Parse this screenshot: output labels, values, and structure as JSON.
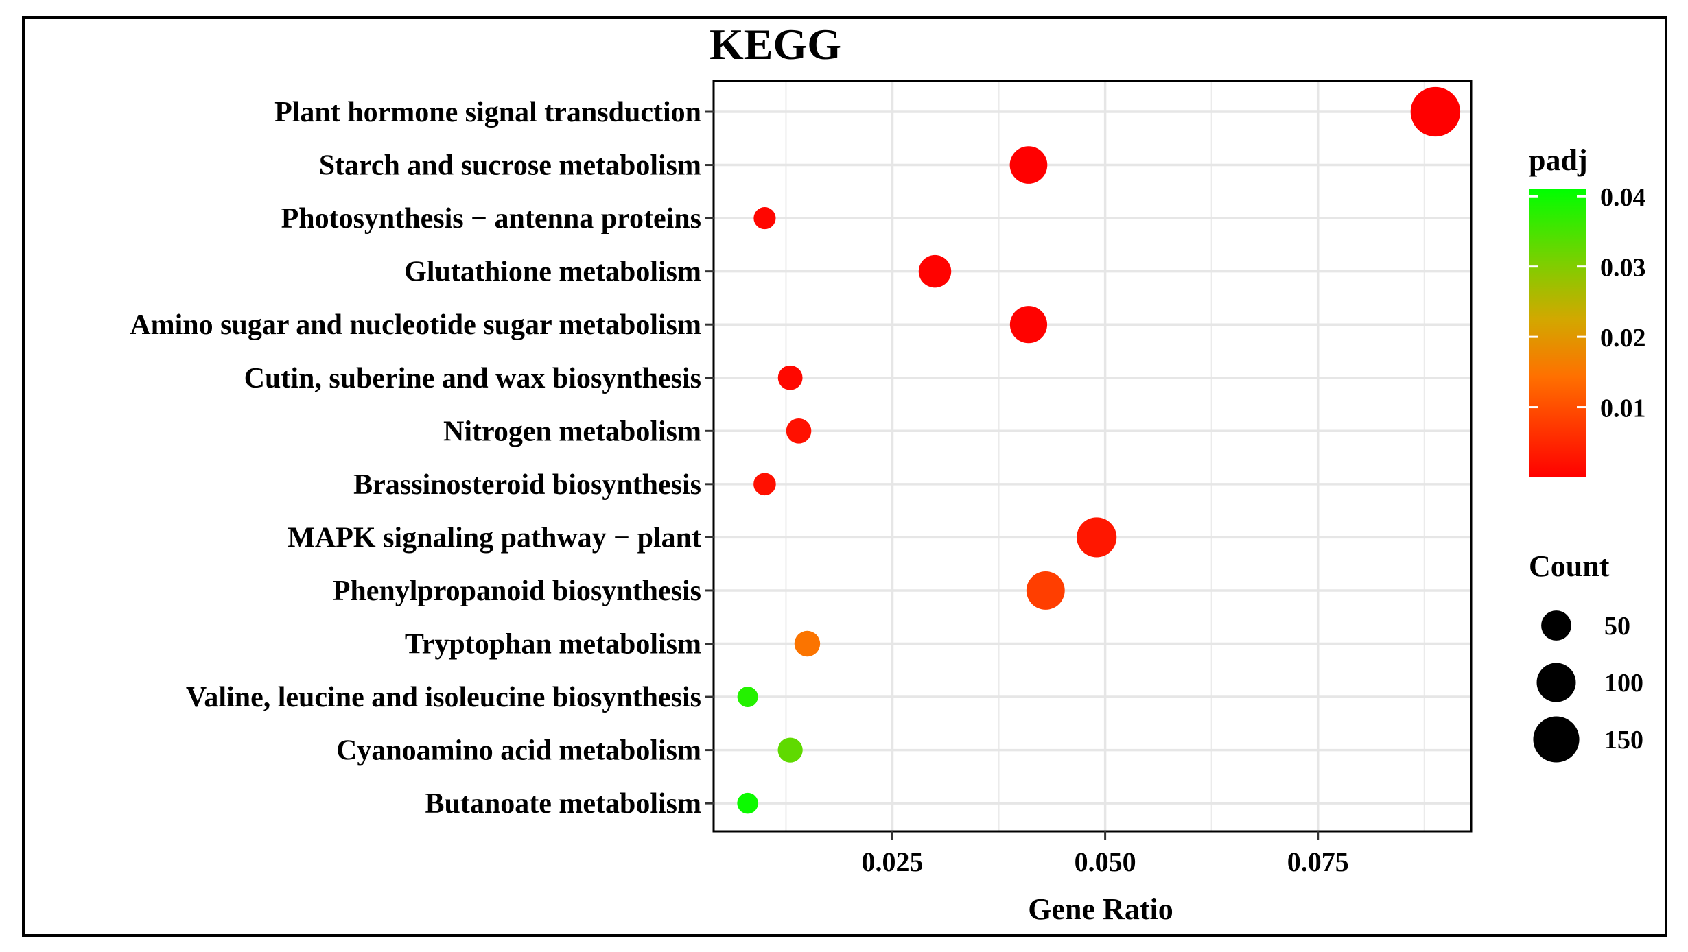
{
  "chart_data": {
    "type": "scatter",
    "title": "KEGG",
    "xlabel": "Gene Ratio",
    "ylabel": "",
    "xlim": [
      0.004,
      0.093
    ],
    "xticks": [
      0.025,
      0.05,
      0.075
    ],
    "xtick_labels": [
      "0.025",
      "0.050",
      "0.075"
    ],
    "grid": true,
    "categories": [
      "Plant hormone signal transduction",
      "Starch and sucrose metabolism",
      "Photosynthesis − antenna proteins",
      "Glutathione metabolism",
      "Amino sugar and nucleotide sugar metabolism",
      "Cutin, suberine and wax biosynthesis",
      "Nitrogen metabolism",
      "Brassinosteroid biosynthesis",
      "MAPK signaling pathway − plant",
      "Phenylpropanoid biosynthesis",
      "Tryptophan metabolism",
      "Valine, leucine and isoleucine biosynthesis",
      "Cyanoamino acid metabolism",
      "Butanoate metabolism"
    ],
    "points": [
      {
        "term": "Plant hormone signal transduction",
        "gene_ratio": 0.0888,
        "count": 180,
        "padj": 0.0
      },
      {
        "term": "Starch and sucrose metabolism",
        "gene_ratio": 0.041,
        "count": 90,
        "padj": 0.0
      },
      {
        "term": "Photosynthesis − antenna proteins",
        "gene_ratio": 0.01,
        "count": 20,
        "padj": 0.0008
      },
      {
        "term": "Glutathione metabolism",
        "gene_ratio": 0.03,
        "count": 62,
        "padj": 0.0003
      },
      {
        "term": "Amino sugar and nucleotide sugar metabolism",
        "gene_ratio": 0.041,
        "count": 88,
        "padj": 0.0002
      },
      {
        "term": "Cutin, suberine and wax biosynthesis",
        "gene_ratio": 0.013,
        "count": 28,
        "padj": 0.001
      },
      {
        "term": "Nitrogen metabolism",
        "gene_ratio": 0.014,
        "count": 30,
        "padj": 0.002
      },
      {
        "term": "Brassinosteroid biosynthesis",
        "gene_ratio": 0.01,
        "count": 21,
        "padj": 0.002
      },
      {
        "term": "MAPK signaling pathway − plant",
        "gene_ratio": 0.049,
        "count": 105,
        "padj": 0.003
      },
      {
        "term": "Phenylpropanoid biosynthesis",
        "gene_ratio": 0.043,
        "count": 95,
        "padj": 0.008
      },
      {
        "term": "Tryptophan metabolism",
        "gene_ratio": 0.015,
        "count": 32,
        "padj": 0.015
      },
      {
        "term": "Valine, leucine and isoleucine biosynthesis",
        "gene_ratio": 0.008,
        "count": 16,
        "padj": 0.038
      },
      {
        "term": "Cyanoamino acid metabolism",
        "gene_ratio": 0.013,
        "count": 29,
        "padj": 0.033
      },
      {
        "term": "Butanoate metabolism",
        "gene_ratio": 0.008,
        "count": 17,
        "padj": 0.04
      }
    ],
    "color_legend": {
      "title": "padj",
      "min": 0.0,
      "max": 0.041,
      "ticks": [
        0.01,
        0.02,
        0.03,
        0.04
      ],
      "tick_labels": [
        "0.01",
        "0.02",
        "0.03",
        "0.04"
      ],
      "low_color": "#ff0000",
      "mid_color": "#c8b400",
      "high_color": "#00ff00"
    },
    "size_legend": {
      "title": "Count",
      "values": [
        50,
        100,
        150
      ],
      "labels": [
        "50",
        "100",
        "150"
      ]
    }
  }
}
